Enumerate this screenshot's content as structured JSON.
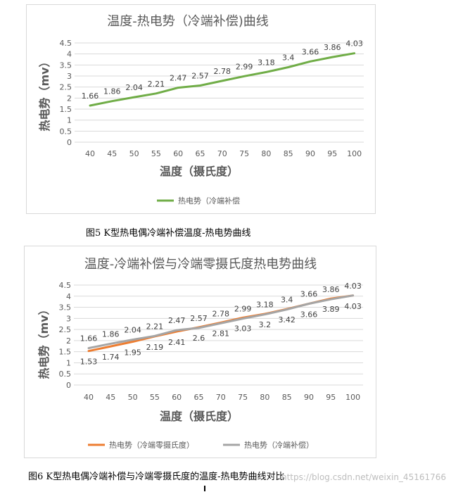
{
  "chart_data": [
    {
      "type": "line",
      "title": "温度-热电势（冷端补偿)曲线",
      "xlabel": "温度（摄氏度）",
      "ylabel": "热电势（mv）",
      "categories": [
        "40",
        "45",
        "50",
        "55",
        "60",
        "65",
        "70",
        "75",
        "80",
        "85",
        "90",
        "95",
        "100"
      ],
      "yticks": [
        "0",
        "0.5",
        "1",
        "1.5",
        "2",
        "2.5",
        "3",
        "3.5",
        "4",
        "4.5"
      ],
      "ylim": [
        0,
        4.5
      ],
      "grid": true,
      "legend_position": "bottom",
      "series": [
        {
          "name": "热电势（冷端补偿",
          "color": "#70ad47",
          "values": [
            1.66,
            1.86,
            2.04,
            2.21,
            2.47,
            2.57,
            2.78,
            2.99,
            3.18,
            3.4,
            3.66,
            3.86,
            4.03
          ],
          "labels": [
            "1.66",
            "1.86",
            "2.04",
            "2.21",
            "2.47",
            "2.57",
            "2.78",
            "2.99",
            "3.18",
            "3.4",
            "3.66",
            "3.86",
            "4.03"
          ],
          "label_pos": "above"
        }
      ]
    },
    {
      "type": "line",
      "title": "温度-冷端补偿与冷端零摄氏度热电势曲线",
      "xlabel": "温度（摄氏度）",
      "ylabel": "热电势（mv）",
      "categories": [
        "40",
        "45",
        "50",
        "55",
        "60",
        "65",
        "70",
        "75",
        "80",
        "85",
        "90",
        "95",
        "100"
      ],
      "yticks": [
        "0",
        "0.5",
        "1",
        "1.5",
        "2",
        "2.5",
        "3",
        "3.5",
        "4",
        "4.5"
      ],
      "ylim": [
        0,
        4.5
      ],
      "grid": true,
      "legend_position": "bottom",
      "series": [
        {
          "name": "热电势（冷端零摄氏度）",
          "color": "#ed7d31",
          "values": [
            1.53,
            1.74,
            1.95,
            2.19,
            2.41,
            2.6,
            2.81,
            3.03,
            3.2,
            3.42,
            3.66,
            3.89,
            4.03
          ],
          "labels": [
            "1.53",
            "1.74",
            "1.95",
            "2.19",
            "2.41",
            "2.6",
            "2.81",
            "3.03",
            "3.2",
            "3.42",
            "3.66",
            "3.89",
            "4.03"
          ],
          "label_pos": "below"
        },
        {
          "name": "热电势（冷端补偿）",
          "color": "#a5a5a5",
          "values": [
            1.66,
            1.86,
            2.04,
            2.21,
            2.47,
            2.57,
            2.78,
            2.99,
            3.18,
            3.4,
            3.66,
            3.86,
            4.03
          ],
          "labels": [
            "1.66",
            "1.86",
            "2.04",
            "2.21",
            "2.47",
            "2.57",
            "2.78",
            "2.99",
            "3.18",
            "3.4",
            "3.66",
            "3.86",
            "4.03"
          ],
          "label_pos": "above"
        }
      ]
    }
  ],
  "captions": {
    "fig5": "图5 K型热电偶冷端补偿温度-热电势曲线",
    "fig6": "图6 K型热电偶冷端补偿与冷端零摄氏度的温度-热电势曲线对比"
  },
  "watermark": "https://blog.csdn.net/weixin_45161766"
}
